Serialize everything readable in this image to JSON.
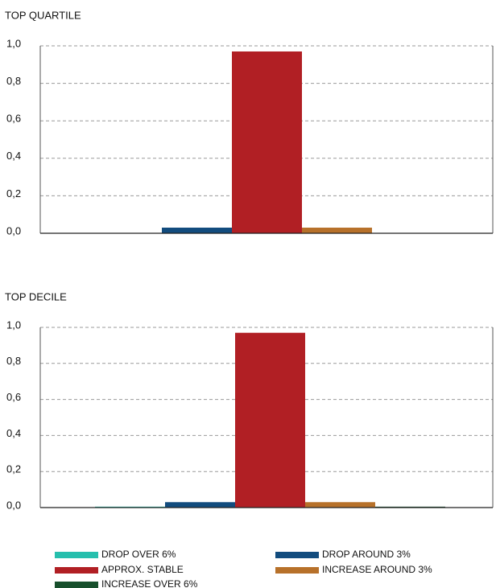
{
  "chart_data": [
    {
      "type": "bar",
      "title": "TOP QUARTILE",
      "series": [
        {
          "values": [
            0
          ]
        },
        {
          "values": [
            0.03
          ]
        },
        {
          "values": [
            0.97
          ]
        },
        {
          "values": [
            0.03
          ]
        },
        {
          "values": [
            0
          ]
        }
      ],
      "ylim": [
        0,
        1
      ],
      "yticks": [
        {
          "value": 0,
          "label": "0,0"
        },
        {
          "value": 0.2,
          "label": "0,2"
        },
        {
          "value": 0.4,
          "label": "0,4"
        },
        {
          "value": 0.6,
          "label": "0,6"
        },
        {
          "value": 0.8,
          "label": "0,8"
        },
        {
          "value": 1,
          "label": "1,0"
        }
      ],
      "grid": true
    },
    {
      "type": "bar",
      "title": "TOP DECILE",
      "series": [
        {
          "values": [
            0.005
          ]
        },
        {
          "values": [
            0.03
          ]
        },
        {
          "values": [
            0.97
          ]
        },
        {
          "values": [
            0.03
          ]
        },
        {
          "values": [
            0.005
          ]
        }
      ],
      "ylim": [
        0,
        1
      ],
      "yticks": [
        {
          "value": 0,
          "label": "0,0"
        },
        {
          "value": 0.2,
          "label": "0,2"
        },
        {
          "value": 0.4,
          "label": "0,4"
        },
        {
          "value": 0.6,
          "label": "0,6"
        },
        {
          "value": 0.8,
          "label": "0,8"
        },
        {
          "value": 1,
          "label": "1,0"
        }
      ],
      "grid": true
    }
  ],
  "legend": [
    {
      "name": "DROP OVER 6%",
      "color": "#26bfad"
    },
    {
      "name": "DROP AROUND 3%",
      "color": "#124c7e"
    },
    {
      "name": "APPROX. STABLE",
      "color": "#b11f24"
    },
    {
      "name": "INCREASE AROUND 3%",
      "color": "#b7712a"
    },
    {
      "name": "INCREASE OVER 6%",
      "color": "#174f2c"
    }
  ]
}
